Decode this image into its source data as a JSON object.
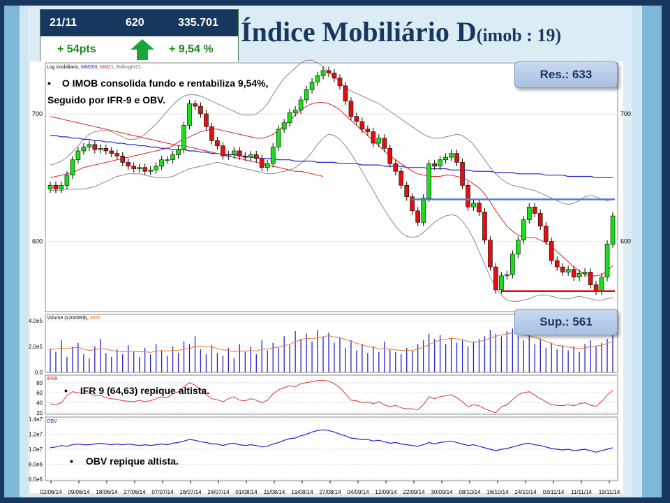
{
  "header": {
    "title_main": "Índice Mobiliário D",
    "title_suffix": "(imob : 19)"
  },
  "ticker": {
    "date": "21/11",
    "points": "620",
    "volume": "335.701",
    "change_pts": "+ 54pts",
    "change_pct": "+ 9,54 %",
    "arrow_color": "#1aa53a"
  },
  "callouts": {
    "resistance": "Res.: 633",
    "support": "Sup.: 561"
  },
  "notes": {
    "price_line1": "O IMOB consolida fundo e rentabiliza  9,54%,",
    "price_line2": "Seguido por IFR-9 e OBV.",
    "ifr": "IFR 9 (64,63) repique altista.",
    "obv": "OBV repique altista."
  },
  "panel_labels": {
    "price_legend_a": "Log imobiliario, ",
    "price_legend_mm200": "MM200",
    "price_legend_mm21": "MM21",
    "price_legend_boll": "Bollinger21,",
    "volume_legend": "Volume (x1000R$)",
    "volume_legend_mm": "MM5",
    "ifr_legend": "IFR9",
    "obv_legend": "OBV"
  },
  "colors": {
    "bull": "#19e019",
    "bear": "#e01010",
    "mm200": "#2222cc",
    "mm21": "#dd2222",
    "bollinger": "#888888",
    "resistance_line": "#4f81bd",
    "support_line": "#ee0000"
  },
  "chart_data": [
    {
      "type": "candlestick",
      "title": "",
      "x_tick_labels": [
        "02/06/14",
        "09/06/14",
        "18/06/14",
        "27/06/14",
        "07/07/14",
        "16/07/14",
        "24/07/14",
        "01/08/14",
        "11/08/14",
        "19/08/14",
        "27/08/14",
        "04/09/14",
        "12/09/14",
        "22/09/14",
        "30/09/14",
        "08/10/14",
        "16/10/14",
        "24/10/14",
        "03/11/14",
        "11/11/14",
        "19/11/14"
      ],
      "y_ticks_left": [
        {
          "label": "700",
          "value": 700
        },
        {
          "label": "600",
          "value": 600
        }
      ],
      "y_ticks_right": [
        {
          "label": "700",
          "value": 700
        },
        {
          "label": "600",
          "value": 600
        }
      ],
      "ylim": [
        545,
        740
      ],
      "close": [
        644,
        641,
        644,
        652,
        664,
        671,
        674,
        676,
        672,
        673,
        671,
        669,
        667,
        662,
        659,
        657,
        658,
        655,
        656,
        659,
        664,
        664,
        668,
        672,
        691,
        708,
        706,
        700,
        690,
        679,
        675,
        667,
        668,
        671,
        667,
        666,
        668,
        665,
        658,
        661,
        674,
        688,
        693,
        701,
        703,
        711,
        719,
        725,
        730,
        734,
        732,
        728,
        722,
        710,
        698,
        694,
        688,
        686,
        677,
        681,
        673,
        661,
        655,
        644,
        635,
        624,
        615,
        634,
        661,
        659,
        664,
        666,
        669,
        662,
        644,
        627,
        630,
        623,
        601,
        580,
        562,
        573,
        574,
        590,
        601,
        617,
        627,
        622,
        612,
        600,
        585,
        580,
        576,
        578,
        572,
        575,
        576,
        566,
        561,
        572,
        598,
        620
      ],
      "mm200": [
        683,
        683,
        682,
        682,
        681,
        681,
        680,
        680,
        679,
        679,
        678,
        678,
        677,
        677,
        676,
        676,
        675,
        675,
        674,
        674,
        673,
        673,
        672,
        672,
        672,
        671,
        671,
        670,
        670,
        669,
        669,
        668,
        668,
        668,
        667,
        667,
        666,
        666,
        665,
        665,
        665,
        664,
        664,
        664,
        663,
        663,
        663,
        663,
        662,
        662,
        662,
        662,
        661,
        661,
        661,
        661,
        660,
        660,
        660,
        660,
        659,
        659,
        659,
        659,
        658,
        658,
        658,
        658,
        657,
        657,
        657,
        657,
        656,
        656,
        656,
        656,
        655,
        655,
        655,
        655,
        654,
        654,
        654,
        654,
        653,
        653,
        653,
        653,
        653,
        652,
        652,
        652,
        652,
        651,
        651,
        651,
        651,
        651,
        650,
        650,
        650,
        650
      ],
      "mm21_segment": {
        "start_index": 0,
        "values": [
          698,
          697,
          696,
          695,
          694,
          693,
          692,
          691,
          690,
          689,
          688,
          687,
          686,
          685,
          684,
          683,
          682,
          681,
          680,
          679,
          678,
          677,
          676,
          675,
          675,
          674,
          673,
          672,
          671,
          670,
          669,
          668,
          667,
          666,
          665,
          664,
          663,
          662,
          661,
          660,
          659,
          658,
          657,
          656,
          655,
          655,
          654,
          653,
          652,
          651
        ]
      },
      "mm21": [
        650,
        651,
        652,
        653,
        654,
        656,
        658,
        659,
        660,
        661,
        662,
        663,
        664,
        665,
        666,
        667,
        668,
        669,
        670,
        671,
        672,
        673,
        675,
        678,
        680,
        682,
        684,
        686,
        687,
        688,
        688,
        687,
        686,
        685,
        684,
        683,
        682,
        681,
        681,
        682,
        684,
        687,
        691,
        695,
        699,
        703,
        706,
        708,
        709,
        709,
        708,
        706,
        703,
        699,
        695,
        691,
        687,
        683,
        679,
        675,
        671,
        667,
        664,
        661,
        658,
        655,
        653,
        652,
        651,
        651,
        651,
        652,
        652,
        651,
        650,
        648,
        645,
        642,
        637,
        631,
        624,
        618,
        612,
        608,
        605,
        603,
        603,
        603,
        601,
        599,
        596,
        592,
        588,
        584,
        580,
        577,
        574,
        573,
        573,
        574,
        577,
        581
      ],
      "bollinger_upper": [
        660,
        661,
        663,
        666,
        670,
        675,
        680,
        684,
        686,
        687,
        687,
        686,
        684,
        682,
        680,
        680,
        681,
        684,
        688,
        692,
        697,
        702,
        707,
        711,
        714,
        715,
        715,
        714,
        712,
        710,
        708,
        706,
        704,
        702,
        700,
        699,
        699,
        700,
        703,
        708,
        715,
        722,
        728,
        732,
        736,
        740,
        742,
        742,
        740,
        737,
        733,
        729,
        725,
        721,
        718,
        716,
        714,
        712,
        710,
        708,
        705,
        702,
        699,
        696,
        693,
        690,
        687,
        684,
        682,
        681,
        681,
        682,
        683,
        684,
        683,
        680,
        676,
        670,
        664,
        658,
        653,
        649,
        646,
        644,
        643,
        642,
        641,
        640,
        638,
        636,
        634,
        632,
        630,
        629,
        630,
        632,
        635,
        636,
        635,
        633,
        632,
        633
      ],
      "bollinger_lower": [
        640,
        640,
        640,
        641,
        641,
        641,
        641,
        642,
        643,
        645,
        647,
        649,
        651,
        652,
        653,
        653,
        653,
        652,
        651,
        650,
        650,
        650,
        651,
        653,
        655,
        657,
        658,
        659,
        660,
        661,
        662,
        661,
        660,
        659,
        658,
        657,
        656,
        655,
        654,
        653,
        653,
        654,
        655,
        656,
        658,
        661,
        665,
        670,
        676,
        681,
        684,
        683,
        680,
        675,
        669,
        662,
        655,
        647,
        640,
        632,
        625,
        618,
        612,
        607,
        604,
        603,
        604,
        607,
        611,
        615,
        618,
        620,
        621,
        620,
        616,
        610,
        602,
        592,
        582,
        572,
        564,
        558,
        554,
        553,
        553,
        554,
        555,
        557,
        558,
        558,
        557,
        556,
        555,
        555,
        556,
        557,
        556,
        555,
        554,
        554,
        555,
        556
      ],
      "resistance_level": 633,
      "support_level": 561
    },
    {
      "type": "bar",
      "title": "",
      "legend": [
        "Volume (x1000R$)",
        "MM5"
      ],
      "y_tick_labels": [
        "4.0e5",
        "2.0e5",
        "0.0"
      ],
      "ylim": [
        0,
        450000
      ],
      "values": [
        185000,
        160000,
        250000,
        120000,
        200000,
        230000,
        140000,
        110000,
        200000,
        260000,
        150000,
        120000,
        180000,
        140000,
        210000,
        160000,
        120000,
        190000,
        140000,
        220000,
        170000,
        130000,
        200000,
        150000,
        240000,
        220000,
        280000,
        180000,
        140000,
        210000,
        150000,
        130000,
        190000,
        110000,
        220000,
        160000,
        200000,
        140000,
        250000,
        170000,
        230000,
        190000,
        280000,
        210000,
        320000,
        260000,
        300000,
        240000,
        330000,
        280000,
        310000,
        230000,
        270000,
        190000,
        250000,
        170000,
        220000,
        150000,
        200000,
        160000,
        240000,
        180000,
        160000,
        140000,
        190000,
        170000,
        220000,
        250000,
        300000,
        260000,
        290000,
        220000,
        270000,
        230000,
        250000,
        200000,
        240000,
        260000,
        280000,
        330000,
        300000,
        280000,
        320000,
        340000,
        280000,
        250000,
        300000,
        220000,
        260000,
        190000,
        230000,
        180000,
        210000,
        170000,
        200000,
        160000,
        220000,
        250000,
        200000,
        230000,
        260000,
        310000
      ],
      "mm5": [
        180000,
        180000,
        190000,
        185000,
        190000,
        195000,
        180000,
        170000,
        175000,
        185000,
        180000,
        170000,
        165000,
        160000,
        165000,
        165000,
        160000,
        160000,
        155000,
        165000,
        170000,
        165000,
        170000,
        170000,
        180000,
        185000,
        200000,
        205000,
        200000,
        195000,
        185000,
        175000,
        170000,
        160000,
        165000,
        165000,
        170000,
        165000,
        180000,
        180000,
        190000,
        195000,
        210000,
        215000,
        240000,
        250000,
        265000,
        260000,
        270000,
        275000,
        285000,
        275000,
        270000,
        255000,
        245000,
        225000,
        215000,
        200000,
        195000,
        180000,
        185000,
        180000,
        175000,
        170000,
        170000,
        170000,
        180000,
        195000,
        215000,
        235000,
        250000,
        255000,
        265000,
        260000,
        255000,
        240000,
        235000,
        240000,
        250000,
        265000,
        280000,
        290000,
        300000,
        305000,
        300000,
        290000,
        285000,
        270000,
        260000,
        240000,
        225000,
        210000,
        205000,
        195000,
        190000,
        185000,
        190000,
        200000,
        205000,
        210000,
        225000,
        240000
      ]
    },
    {
      "type": "line",
      "title": "",
      "legend": [
        "IFR9"
      ],
      "y_tick_labels": [
        "80",
        "60",
        "40",
        "20"
      ],
      "ylim": [
        17,
        95
      ],
      "values": [
        38,
        36,
        40,
        55,
        62,
        60,
        58,
        60,
        54,
        55,
        50,
        48,
        47,
        44,
        43,
        42,
        45,
        42,
        44,
        48,
        52,
        50,
        58,
        62,
        72,
        80,
        75,
        66,
        56,
        48,
        46,
        42,
        48,
        52,
        45,
        44,
        48,
        45,
        40,
        45,
        58,
        66,
        70,
        74,
        72,
        78,
        80,
        82,
        84,
        85,
        83,
        78,
        70,
        58,
        45,
        44,
        40,
        42,
        38,
        42,
        36,
        32,
        35,
        30,
        28,
        28,
        26,
        36,
        52,
        48,
        52,
        54,
        56,
        50,
        42,
        32,
        36,
        34,
        28,
        24,
        20,
        32,
        36,
        46,
        56,
        60,
        62,
        55,
        48,
        42,
        36,
        35,
        34,
        36,
        34,
        38,
        40,
        35,
        33,
        42,
        55,
        64.63
      ]
    },
    {
      "type": "line",
      "title": "",
      "legend": [
        "OBV"
      ],
      "y_tick_labels": [
        "1.4e7",
        "1.2e7",
        "1.0e7",
        "8.0e6",
        "6.0e6"
      ],
      "ylim": [
        5800000,
        14300000
      ],
      "values": [
        10200000,
        10300000,
        10500000,
        10400000,
        10600000,
        10700000,
        10600000,
        10600000,
        10700000,
        10800000,
        10700000,
        10600000,
        10700000,
        10600000,
        10700000,
        10600000,
        10500000,
        10600000,
        10500000,
        10600000,
        10700000,
        10600000,
        10800000,
        10900000,
        11100000,
        11300000,
        11200000,
        11000000,
        10900000,
        10700000,
        10700000,
        10500000,
        10700000,
        10800000,
        10600000,
        10500000,
        10600000,
        10500000,
        10300000,
        10400000,
        10700000,
        10900000,
        11200000,
        11400000,
        11500000,
        11800000,
        12000000,
        12300000,
        12500000,
        12600000,
        12500000,
        12300000,
        12000000,
        11800000,
        11500000,
        11400000,
        11300000,
        11300000,
        11100000,
        11200000,
        11000000,
        10800000,
        10900000,
        10700000,
        10600000,
        10500000,
        10400000,
        10600000,
        10900000,
        10700000,
        10900000,
        11000000,
        11100000,
        10900000,
        10700000,
        10500000,
        10600000,
        10400000,
        10200000,
        10000000,
        9800000,
        10000000,
        10100000,
        10300000,
        10500000,
        10700000,
        10800000,
        10600000,
        10500000,
        10300000,
        10100000,
        10000000,
        9900000,
        10000000,
        9800000,
        9900000,
        10000000,
        9800000,
        9600000,
        9800000,
        10000000,
        10200000
      ]
    }
  ]
}
